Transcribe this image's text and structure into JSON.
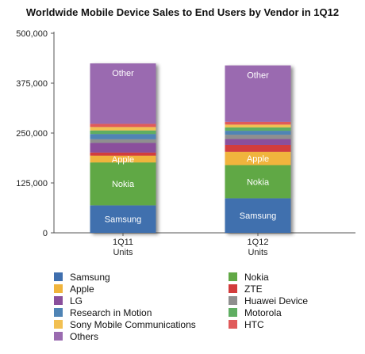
{
  "chart_data": {
    "type": "bar",
    "stacked": true,
    "title": "Worldwide Mobile Device Sales to End Users by Vendor in 1Q12",
    "categories": [
      "1Q11",
      "1Q12"
    ],
    "category_sublabel": "Units",
    "ylim": [
      0,
      500000
    ],
    "yticks": [
      0,
      125000,
      250000,
      375000,
      500000
    ],
    "ytick_labels": [
      "0",
      "125,000",
      "250,000",
      "375,000",
      "500,000"
    ],
    "grid": false,
    "legend_position": "bottom",
    "series": [
      {
        "name": "Samsung",
        "color": "#3f6fae",
        "show_label": true,
        "values": [
          68782,
          86569
        ]
      },
      {
        "name": "Nokia",
        "color": "#61a845",
        "show_label": true,
        "values": [
          107556,
          83163
        ]
      },
      {
        "name": "Apple",
        "color": "#f0b43c",
        "show_label": true,
        "values": [
          16883,
          33121
        ]
      },
      {
        "name": "ZTE",
        "color": "#d23c3c",
        "show_label": false,
        "values": [
          7882,
          17436
        ]
      },
      {
        "name": "LG",
        "color": "#8a4f9c",
        "show_label": false,
        "values": [
          24420,
          14720
        ]
      },
      {
        "name": "Huawei Device",
        "color": "#8f8f8f",
        "show_label": false,
        "values": [
          9026,
          10796
        ]
      },
      {
        "name": "Research in Motion",
        "color": "#4f84b5",
        "show_label": false,
        "values": [
          13004,
          9939
        ]
      },
      {
        "name": "Motorola",
        "color": "#5fae62",
        "show_label": false,
        "values": [
          8945,
          8371
        ]
      },
      {
        "name": "Sony Mobile Communications",
        "color": "#f2c052",
        "show_label": false,
        "values": [
          8700,
          7100
        ]
      },
      {
        "name": "HTC",
        "color": "#e05a5a",
        "show_label": false,
        "values": [
          8000,
          6900
        ]
      },
      {
        "name": "Others",
        "color": "#9a6bb0",
        "show_label": true,
        "bar_label": "Other",
        "values": [
          151300,
          141300
        ]
      }
    ]
  }
}
